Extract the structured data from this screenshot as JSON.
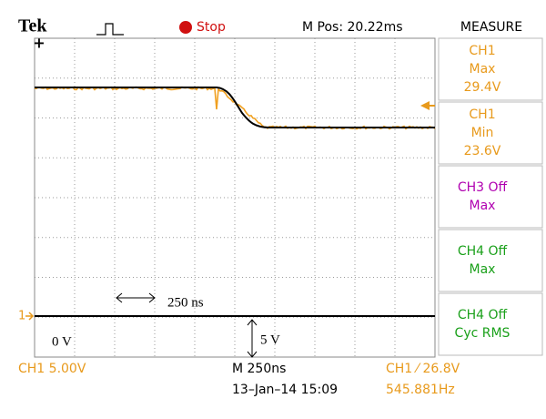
{
  "header": {
    "brand": "Tek",
    "status": "Stop",
    "position": "M Pos: 20.22ms",
    "panel_title": "MEASURE"
  },
  "measurements": [
    {
      "lines": [
        "CH1",
        "Max",
        "29.4V"
      ],
      "color": "#e89a1c"
    },
    {
      "lines": [
        "CH1",
        "Min",
        "23.6V"
      ],
      "color": "#e89a1c"
    },
    {
      "lines": [
        "CH3 Off",
        "Max"
      ],
      "color": "#b000b0"
    },
    {
      "lines": [
        "CH4 Off",
        "Max"
      ],
      "color": "#1aa01a"
    },
    {
      "lines": [
        "CH4 Off",
        "Cyc RMS"
      ],
      "color": "#1aa01a"
    }
  ],
  "annotations": {
    "time_span": "250 ns",
    "zero": "0 V",
    "volts": "5 V"
  },
  "markers": {
    "ch1": "1"
  },
  "footer": {
    "ch1_scale": "CH1  5.00V",
    "timebase": "M 250ns",
    "trigger": "CH1 ⁄ 26.8V",
    "date": "13–Jan–14 15:09",
    "frequency": "545.881Hz"
  }
}
